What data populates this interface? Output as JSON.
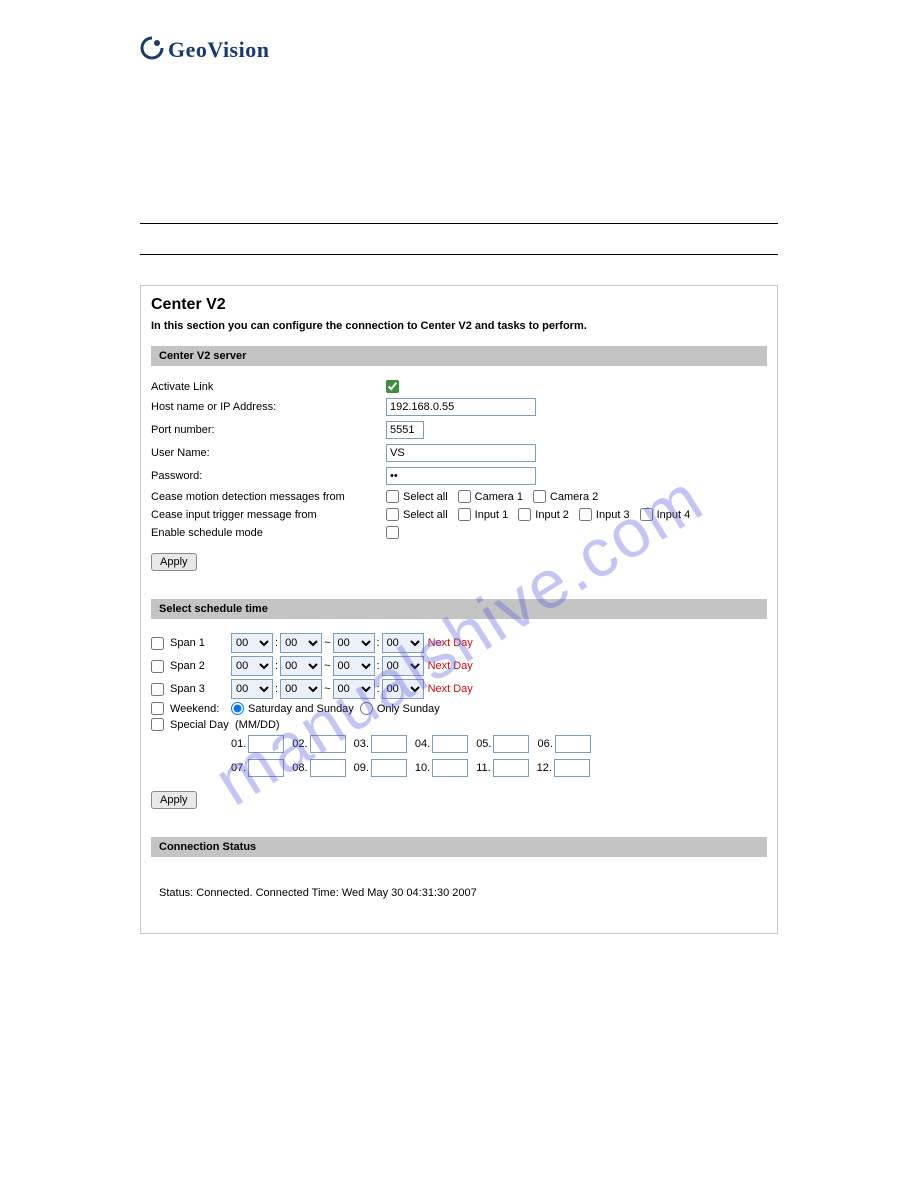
{
  "brand": {
    "name": "GeoVision"
  },
  "watermark": "manualshive.com",
  "panel": {
    "title": "Center V2",
    "subtitle": "In this section you can configure the connection to Center V2 and tasks to perform."
  },
  "sections": {
    "server": "Center V2 server",
    "schedule": "Select schedule time",
    "status": "Connection Status"
  },
  "server": {
    "activate_label": "Activate Link",
    "activate_checked": true,
    "host_label": "Host name or IP Address:",
    "host_value": "192.168.0.55",
    "port_label": "Port number:",
    "port_value": "5551",
    "user_label": "User Name:",
    "user_value": "VS",
    "pass_label": "Password:",
    "pass_value": "••",
    "cease_motion_label": "Cease motion detection messages from",
    "cease_motion_opts": [
      "Select all",
      "Camera 1",
      "Camera 2"
    ],
    "cease_input_label": "Cease input trigger message from",
    "cease_input_opts": [
      "Select all",
      "Input 1",
      "Input 2",
      "Input 3",
      "Input 4"
    ],
    "schedule_mode_label": "Enable schedule mode",
    "schedule_mode_checked": false,
    "apply": "Apply"
  },
  "schedule": {
    "spans": [
      {
        "label": "Span 1",
        "checked": false,
        "h1": "00",
        "m1": "00",
        "h2": "00",
        "m2": "00",
        "next": "Next Day"
      },
      {
        "label": "Span 2",
        "checked": false,
        "h1": "00",
        "m1": "00",
        "h2": "00",
        "m2": "00",
        "next": "Next Day"
      },
      {
        "label": "Span 3",
        "checked": false,
        "h1": "00",
        "m1": "00",
        "h2": "00",
        "m2": "00",
        "next": "Next Day"
      }
    ],
    "weekend_label": "Weekend:",
    "weekend_checked": false,
    "weekend_options": [
      {
        "label": "Saturday and Sunday",
        "selected": true
      },
      {
        "label": "Only Sunday",
        "selected": false
      }
    ],
    "special_label": "Special Day",
    "special_checked": false,
    "mmdd_hint": "(MM/DD)",
    "special_days": [
      "01.",
      "02.",
      "03.",
      "04.",
      "05.",
      "06.",
      "07.",
      "08.",
      "09.",
      "10.",
      "11.",
      "12."
    ],
    "apply": "Apply"
  },
  "status": {
    "text": "Status: Connected. Connected Time: Wed May 30 04:31:30 2007"
  },
  "colors": {
    "header_bg": "#c4c4c4",
    "input_border": "#7e9db9",
    "select_bg": "#ebf0f9",
    "nextday": "#c41010",
    "brand": "#1a3a6e",
    "watermark": "rgba(90,90,220,0.35)"
  }
}
